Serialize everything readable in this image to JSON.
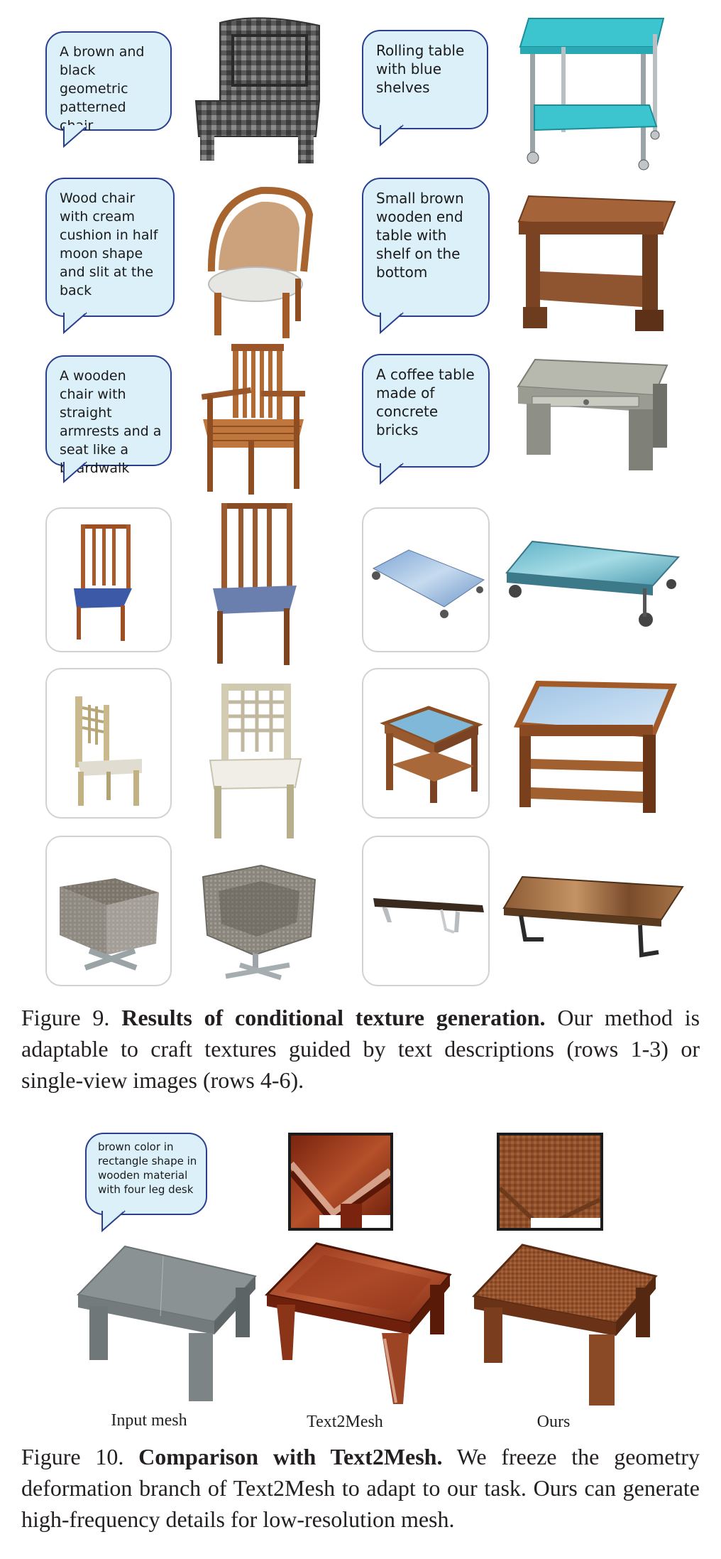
{
  "fig9": {
    "prompts": [
      "A brown and black geometric patterned chair",
      "Rolling table with blue shelves",
      "Wood chair with cream cushion in half moon shape and slit at the back",
      "Small brown wooden end table with shelf on the bottom",
      "A wooden chair with straight armrests and a seat like a boardwalk",
      "A coffee table made of concrete bricks"
    ],
    "caption_label": "Figure 9.",
    "caption_title": "Results of conditional texture generation.",
    "caption_body": "Our method is adaptable to craft textures guided by text descriptions (rows 1-3) or single-view images (rows 4-6)."
  },
  "fig10": {
    "prompt": "brown color in rectangle shape in wooden material with four leg desk",
    "labels": [
      "Input mesh",
      "Text2Mesh",
      "Ours"
    ],
    "caption_label": "Figure 10.",
    "caption_title": "Comparison with Text2Mesh.",
    "caption_body": "We freeze the geometry deformation branch of Text2Mesh to adapt to our task. Ours can generate high-frequency details for low-resolution mesh."
  },
  "colors": {
    "bubble_fill": "#dcf0fa",
    "bubble_border": "#2a3f8f",
    "frame_border": "#d2d2d2",
    "wood": "#9c5a2e",
    "teal": "#3cc4cf",
    "concrete": "#a8aaa0"
  }
}
